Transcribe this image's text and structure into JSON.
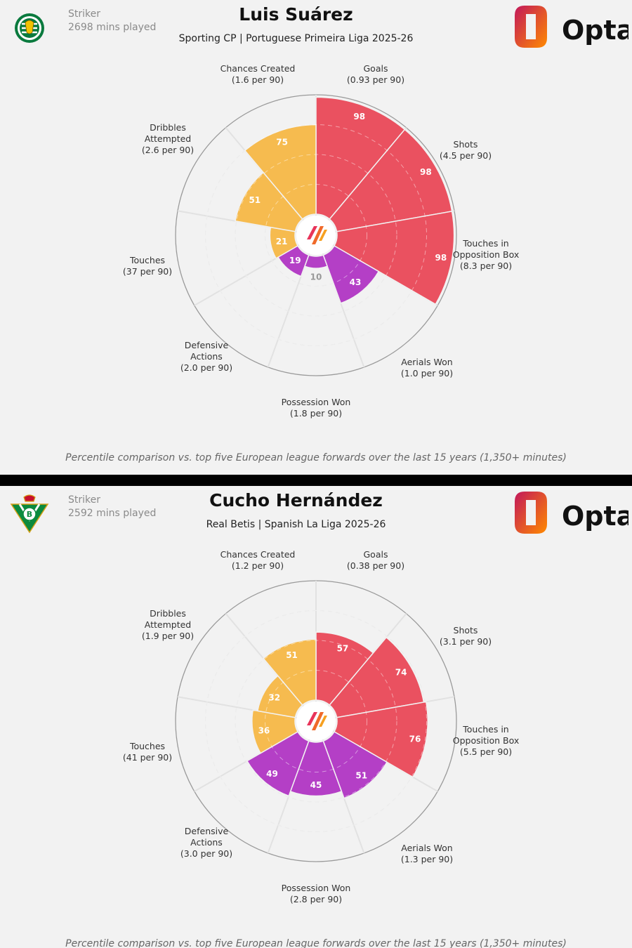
{
  "colors": {
    "attacking": "#ea5160",
    "possession": "#f6bb4f",
    "defending": "#b43fc6",
    "background": "#f2f2f2"
  },
  "panels": [
    {
      "role": "Striker",
      "minutes": "2698 mins played",
      "player": "Luis Suárez",
      "team_league": "Sporting CP | Portuguese Primeira Liga 2025-26",
      "crest": "sporting-cp-crest",
      "brand": "Opta",
      "caption": "Percentile comparison vs. top five European league forwards over the last 15 years (1,350+ minutes)",
      "chart_data": {
        "type": "polar-bar",
        "scale": [
          0,
          100
        ],
        "categories": [
          {
            "name": "Goals",
            "sub": "(0.93 per 90)",
            "value": 98,
            "group": "attacking"
          },
          {
            "name": "Shots",
            "sub": "(4.5 per 90)",
            "value": 98,
            "group": "attacking"
          },
          {
            "name": "Touches in Opposition Box",
            "sub": "(8.3 per 90)",
            "value": 98,
            "group": "attacking"
          },
          {
            "name": "Aerials Won",
            "sub": "(1.0 per 90)",
            "value": 43,
            "group": "defending"
          },
          {
            "name": "Possession Won",
            "sub": "(1.8 per 90)",
            "value": 10,
            "group": "defending"
          },
          {
            "name": "Defensive Actions",
            "sub": "(2.0 per 90)",
            "value": 19,
            "group": "defending"
          },
          {
            "name": "Touches",
            "sub": "(37 per 90)",
            "value": 21,
            "group": "possession"
          },
          {
            "name": "Dribbles Attempted",
            "sub": "(2.6 per 90)",
            "value": 51,
            "group": "possession"
          },
          {
            "name": "Chances Created",
            "sub": "(1.6 per 90)",
            "value": 75,
            "group": "possession"
          }
        ]
      }
    },
    {
      "role": "Striker",
      "minutes": "2592 mins played",
      "player": "Cucho Hernández",
      "team_league": "Real Betis | Spanish La Liga 2025-26",
      "crest": "real-betis-crest",
      "brand": "Opta",
      "caption": "Percentile comparison vs. top five European league forwards over the last 15 years (1,350+ minutes)",
      "chart_data": {
        "type": "polar-bar",
        "scale": [
          0,
          100
        ],
        "categories": [
          {
            "name": "Goals",
            "sub": "(0.38 per 90)",
            "value": 57,
            "group": "attacking"
          },
          {
            "name": "Shots",
            "sub": "(3.1 per 90)",
            "value": 74,
            "group": "attacking"
          },
          {
            "name": "Touches in Opposition Box",
            "sub": "(5.5 per 90)",
            "value": 76,
            "group": "attacking"
          },
          {
            "name": "Aerials Won",
            "sub": "(1.3 per 90)",
            "value": 51,
            "group": "defending"
          },
          {
            "name": "Possession Won",
            "sub": "(2.8 per 90)",
            "value": 45,
            "group": "defending"
          },
          {
            "name": "Defensive Actions",
            "sub": "(3.0 per 90)",
            "value": 49,
            "group": "defending"
          },
          {
            "name": "Touches",
            "sub": "(41 per 90)",
            "value": 36,
            "group": "possession"
          },
          {
            "name": "Dribbles Attempted",
            "sub": "(1.9 per 90)",
            "value": 32,
            "group": "possession"
          },
          {
            "name": "Chances Created",
            "sub": "(1.2 per 90)",
            "value": 51,
            "group": "possession"
          }
        ]
      }
    }
  ]
}
